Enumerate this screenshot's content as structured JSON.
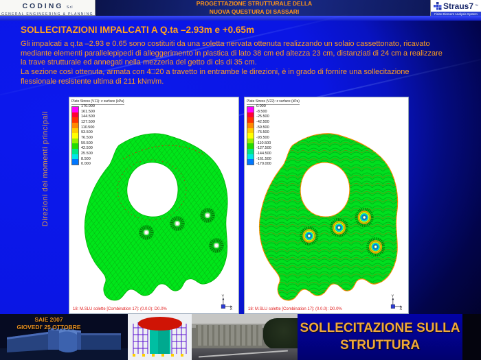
{
  "header": {
    "coding": {
      "name": "CODING",
      "suffix": "S.r.l",
      "tagline": "GENERAL ENGINEERING & PLANNING"
    },
    "project_title_line1": "PROGETTAZIONE STRUTTURALE DELLA",
    "project_title_line2": "NUOVA QUESTURA DI SASSARI",
    "straus7": {
      "name": "Straus7",
      "tm": "™",
      "tagline": "Finite Element Analysis System"
    }
  },
  "content": {
    "title": "SOLLECITAZIONI IMPALCATI A Q.ta –2.93m e +0.65m",
    "body_line1": "Gli impalcati a q.ta –2.93 e 0.65 sono costituiti da una soletta nervata ottenuta realizzando un solaio cassettonato, ricavato mediante elementi parallelepipedi di alleggerimento in plastica di lato 38 cm ed altezza 23 cm, distanziati di 24 cm a realizzare la trave strutturale ed annegati nella mezzeria del getto di cls di 35 cm.",
    "body_line2": "La sezione così ottenuta, armata con 4□20 a travetto in entrambe le direzioni, è in grado di fornire una sollecitazione flessionale resistente ultima di 211 kNm/m.",
    "side_label": "Direzioni dei momenti principali"
  },
  "plots": [
    {
      "legend_title": "Plate Stress (V11): z surface (kPa)",
      "legend_values": [
        "170.000",
        "161.500",
        "144.500",
        "127.500",
        "110.500",
        "93.500",
        "76.500",
        "59.500",
        "42.500",
        "25.500",
        "8.500",
        "0.000"
      ],
      "status": "18: M.SLU solette [Combination 17]: (0.0.0): D0.0%",
      "axis_x": "X",
      "axis_y": "Y"
    },
    {
      "legend_title": "Plate Stress (V22): z surface (kPa)",
      "legend_values": [
        "0.000",
        "-8.500",
        "-25.500",
        "-42.500",
        "-59.500",
        "-76.500",
        "-93.500",
        "-110.500",
        "-127.500",
        "-144.500",
        "-161.500",
        "-170.000"
      ],
      "status": "18: M.SLU solette [Combination 17]: (0.0.0): D0.0%",
      "axis_x": "X",
      "axis_y": "Y"
    }
  ],
  "legend_colors": [
    "#ff00ff",
    "#ff0033",
    "#ff3300",
    "#ff8800",
    "#ffcc00",
    "#ffff00",
    "#99ee00",
    "#22dd00",
    "#00e688",
    "#00e6e6",
    "#0077ff"
  ],
  "footer": {
    "event_line1": "SAIE 2007",
    "event_line2": "GIOVEDI' 25 OTTOBRE",
    "banner_line1": "SOLLECITAZIONE SULLA",
    "banner_line2": "STRUTTURA"
  },
  "colors": {
    "background_left": "#0a16e4",
    "background_right": "#010120",
    "accent_text": "#ff9d1e",
    "contour_fill": "#00e61a",
    "banner_bg": "#0202a6",
    "banner_text": "#efa83a",
    "status_text": "#e11a1a"
  }
}
